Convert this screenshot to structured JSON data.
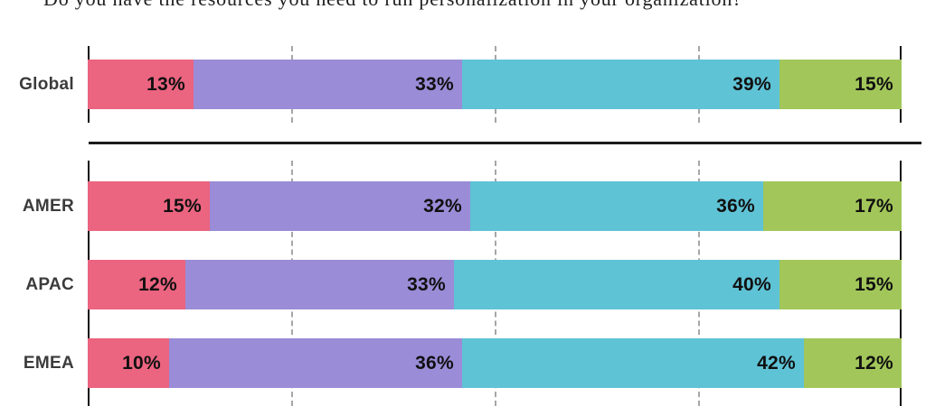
{
  "title": "Do you have the resources you need to run personalization in your organization?",
  "chart_data": {
    "type": "bar",
    "orientation": "horizontal",
    "stacked": true,
    "title": "Do you have the resources you need to run personalization in your organization?",
    "value_suffix": "%",
    "axis": {
      "min": 0,
      "max": 100,
      "gridline_values": [
        25,
        50,
        75
      ],
      "gridline_style": "dashed",
      "edge_line_style": "solid"
    },
    "segment_colors": [
      "#EB6480",
      "#9A8CD7",
      "#5FC3D6",
      "#A2C65A"
    ],
    "groups": [
      {
        "name": "global",
        "rows": [
          {
            "label": "Global",
            "values": [
              13,
              33,
              39,
              15
            ]
          }
        ]
      },
      {
        "name": "regions",
        "rows": [
          {
            "label": "AMER",
            "values": [
              15,
              32,
              36,
              17
            ]
          },
          {
            "label": "APAC",
            "values": [
              12,
              33,
              40,
              15
            ]
          },
          {
            "label": "EMEA",
            "values": [
              10,
              36,
              42,
              12
            ]
          }
        ]
      }
    ]
  }
}
